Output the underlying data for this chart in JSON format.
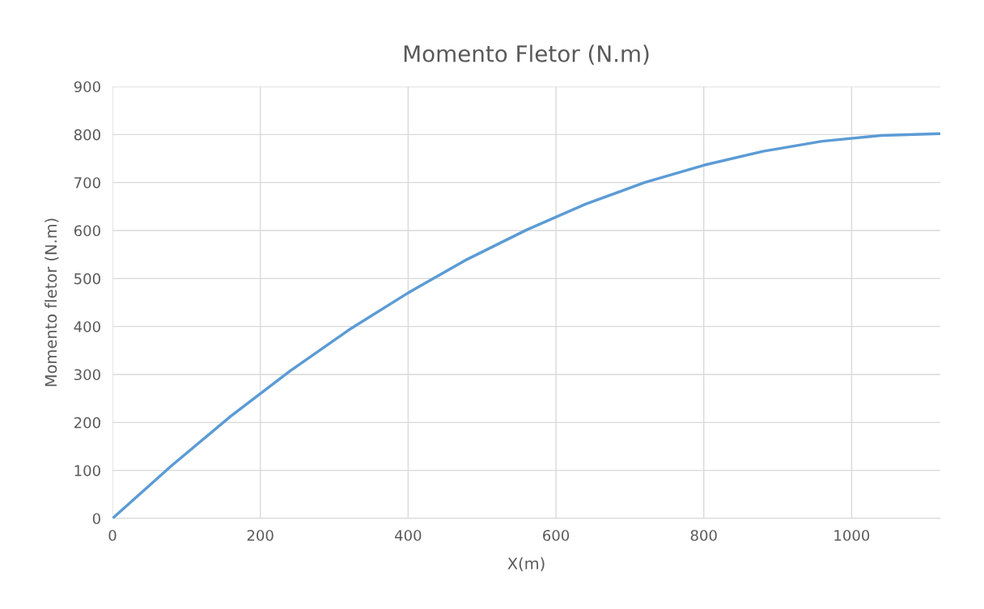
{
  "chart_data": {
    "type": "line",
    "title": "Momento Fletor (N.m)",
    "xlabel": "X(m)",
    "ylabel": "Momento fletor (N.m)",
    "x": [
      0,
      80,
      160,
      240,
      320,
      400,
      480,
      560,
      640,
      720,
      800,
      880,
      960,
      1040,
      1120
    ],
    "series": [
      {
        "color": "#5b9bd5",
        "values": [
          0,
          110,
          213,
          307,
          393,
          470,
          540,
          601,
          655,
          700,
          736,
          765,
          786,
          798,
          802
        ]
      }
    ],
    "xlim": [
      0,
      1120
    ],
    "xticks": [
      0,
      200,
      400,
      600,
      800,
      1000
    ],
    "ylim": [
      0,
      900
    ],
    "yticks": [
      0,
      100,
      200,
      300,
      400,
      500,
      600,
      700,
      800,
      900
    ],
    "grid": true,
    "legend": false,
    "marker": "none",
    "line_style": "solid"
  }
}
